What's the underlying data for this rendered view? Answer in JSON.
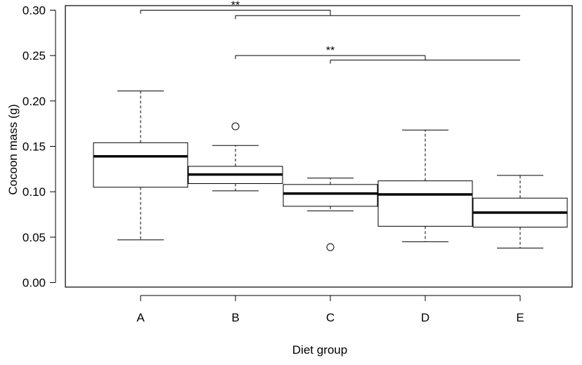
{
  "chart_data": {
    "type": "box",
    "title": "",
    "xlabel": "Diet group",
    "ylabel": "Cocoon mass (g)",
    "ylim": [
      -0.005,
      0.305
    ],
    "yticks": [
      0.0,
      0.05,
      0.1,
      0.15,
      0.2,
      0.25,
      0.3
    ],
    "ytick_labels": [
      "0.00",
      "0.05",
      "0.10",
      "0.15",
      "0.20",
      "0.25",
      "0.30"
    ],
    "grid": false,
    "categories": [
      "A",
      "B",
      "C",
      "D",
      "E"
    ],
    "boxes": [
      {
        "label": "A",
        "whisker_low": 0.047,
        "q1": 0.105,
        "median": 0.139,
        "q3": 0.154,
        "whisker_high": 0.211,
        "outliers": []
      },
      {
        "label": "B",
        "whisker_low": 0.101,
        "q1": 0.109,
        "median": 0.119,
        "q3": 0.128,
        "whisker_high": 0.151,
        "outliers": [
          0.172
        ]
      },
      {
        "label": "C",
        "whisker_low": 0.079,
        "q1": 0.084,
        "median": 0.098,
        "q3": 0.108,
        "whisker_high": 0.115,
        "outliers": [
          0.039
        ]
      },
      {
        "label": "D",
        "whisker_low": 0.045,
        "q1": 0.062,
        "median": 0.097,
        "q3": 0.112,
        "whisker_high": 0.168,
        "outliers": []
      },
      {
        "label": "E",
        "whisker_low": 0.038,
        "q1": 0.061,
        "median": 0.077,
        "q3": 0.093,
        "whisker_high": 0.118,
        "outliers": []
      }
    ],
    "significance": [
      {
        "label": "**",
        "left_start": "A",
        "left_end": "C",
        "right_start": "B",
        "right_end": "E",
        "y_upper": 0.3,
        "y_lower": 0.294
      },
      {
        "label": "**",
        "left_start": "B",
        "left_end": "D",
        "right_start": "C",
        "right_end": "E",
        "y_upper": 0.25,
        "y_lower": 0.245
      }
    ]
  }
}
